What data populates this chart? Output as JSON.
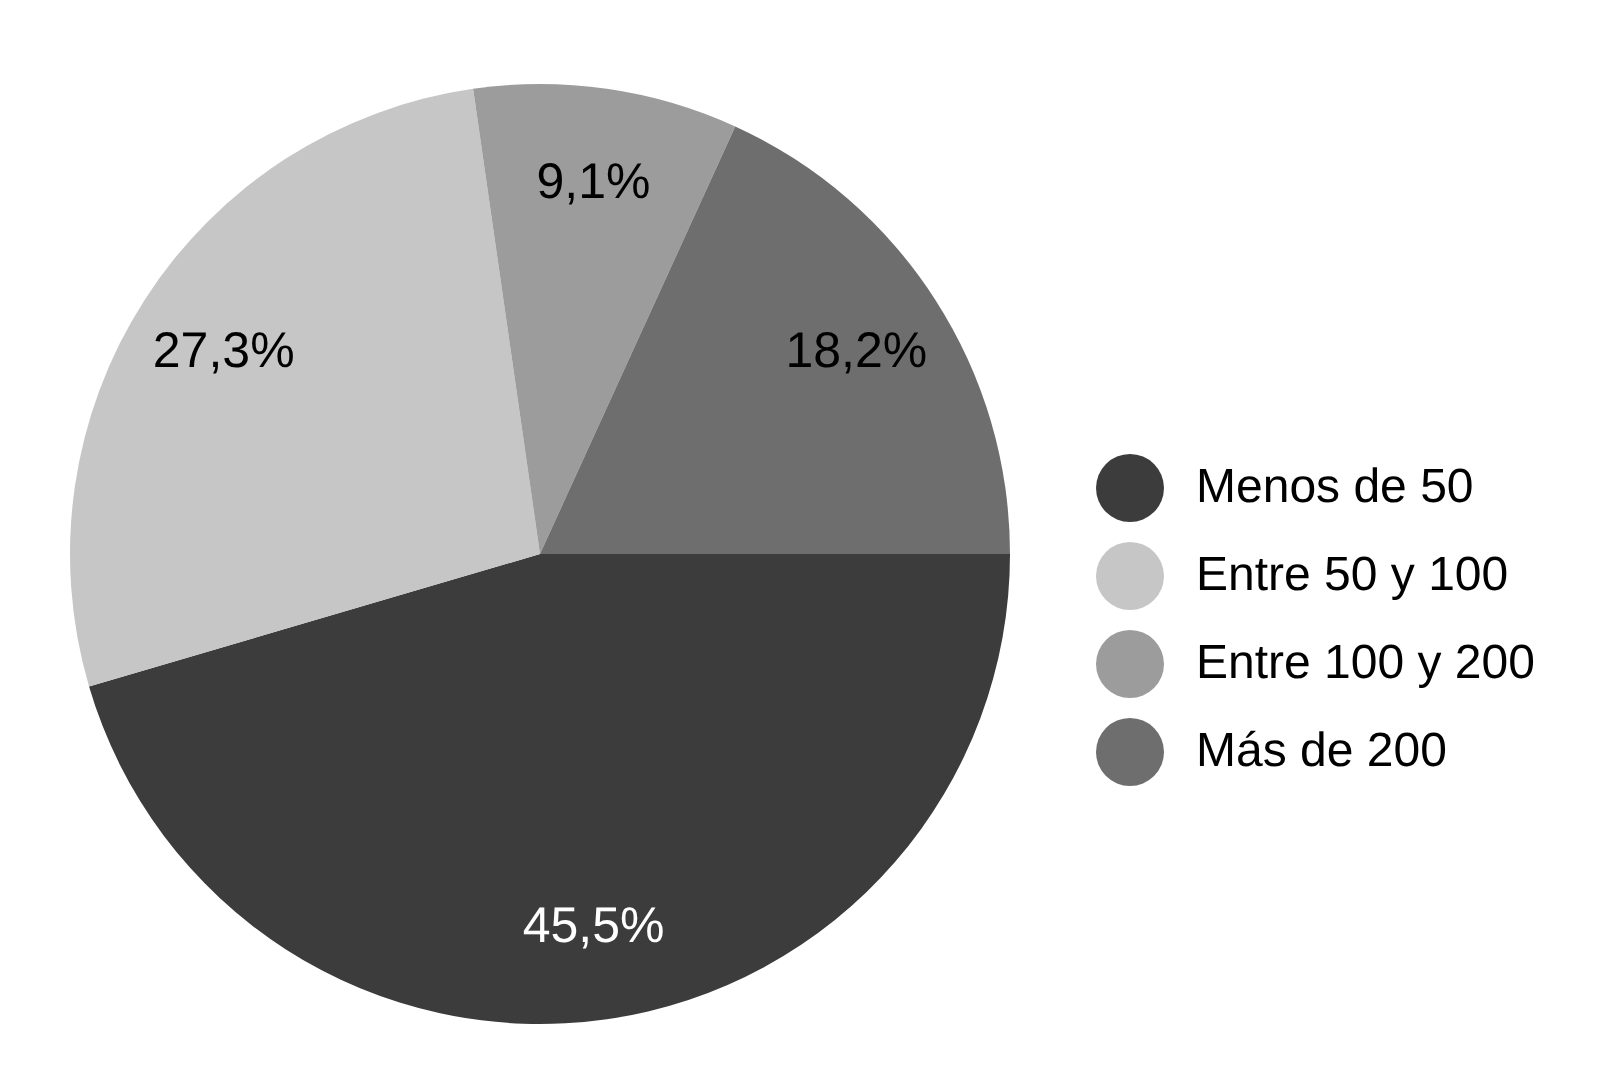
{
  "chart_data": {
    "type": "pie",
    "categories": [
      "Menos de 50",
      "Entre 50 y 100",
      "Entre 100 y 200",
      "Más de 200"
    ],
    "values": [
      45.5,
      27.3,
      9.1,
      18.2
    ],
    "colors": [
      "#3c3c3c",
      "#c6c6c6",
      "#9c9c9c",
      "#6e6e6e"
    ],
    "value_labels": [
      "45,5%",
      "27,3%",
      "9,1%",
      "18,2%"
    ],
    "legend": "right"
  }
}
